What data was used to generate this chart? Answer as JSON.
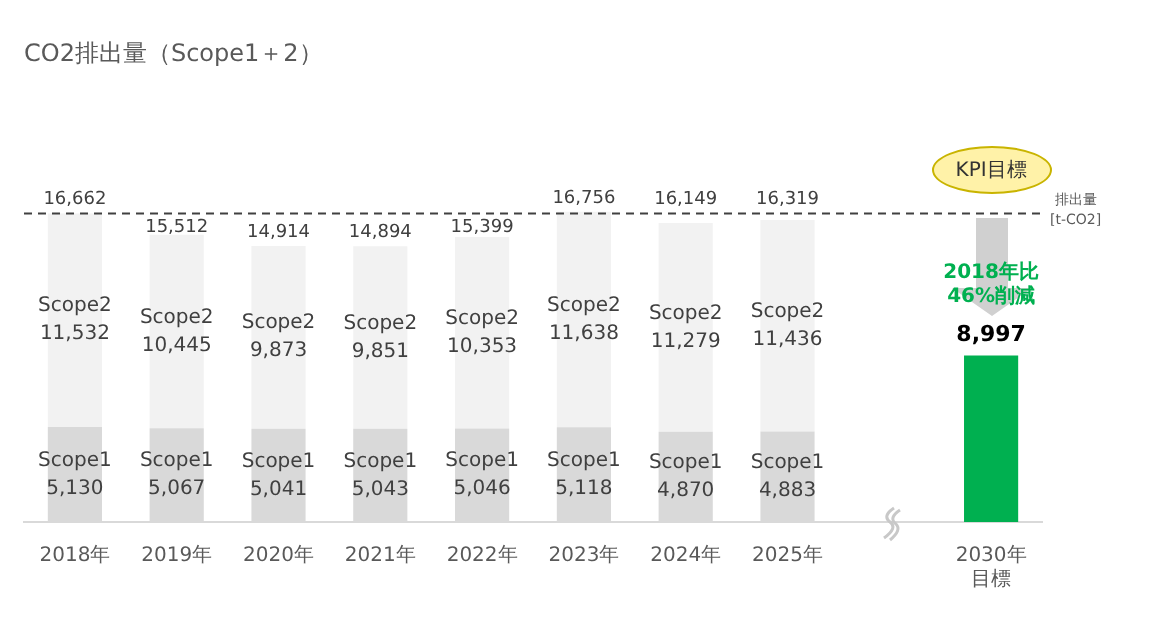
{
  "chart_data": {
    "type": "bar",
    "title": "CO2排出量（Scope1＋2）",
    "stacked": true,
    "legend": false,
    "grid": false,
    "tick_labels": "x",
    "categories": [
      "2018年",
      "2019年",
      "2020年",
      "2021年",
      "2022年",
      "2023年",
      "2024年",
      "2025年",
      null,
      "2030年目標"
    ],
    "series": [
      {
        "name": "Scope1",
        "color": "#d9d9d9",
        "values": [
          5130,
          5067,
          5041,
          5043,
          5046,
          5118,
          4870,
          4883,
          null,
          null
        ],
        "value_labels": [
          "5,130",
          "5,067",
          "5,041",
          "5,043",
          "5,046",
          "5,118",
          "4,870",
          "4,883",
          null,
          null
        ]
      },
      {
        "name": "Scope2",
        "color": "#f2f2f2",
        "values": [
          11532,
          10445,
          9873,
          9851,
          10353,
          11638,
          11279,
          11436,
          null,
          null
        ],
        "value_labels": [
          "11,532",
          "10,445",
          "9,873",
          "9,851",
          "10,353",
          "11,638",
          "11,279",
          "11,436",
          null,
          null
        ]
      },
      {
        "color": "#00b050",
        "values": [
          null,
          null,
          null,
          null,
          null,
          null,
          null,
          null,
          null,
          8997
        ],
        "value_labels": [
          null,
          null,
          null,
          null,
          null,
          null,
          null,
          null,
          null,
          "8,997"
        ]
      }
    ],
    "totals": [
      "16,662",
      "15,512",
      "14,914",
      "14,894",
      "15,399",
      "16,756",
      "16,149",
      "16,319",
      null,
      null
    ],
    "ref_lines": [
      {
        "axis": "y",
        "value": 16662,
        "color": "#404040",
        "line_style": "dashed"
      }
    ],
    "annotations": [
      "KPI目標",
      "2018年比\n46%削減",
      "排出量\n[t-CO2]"
    ]
  }
}
